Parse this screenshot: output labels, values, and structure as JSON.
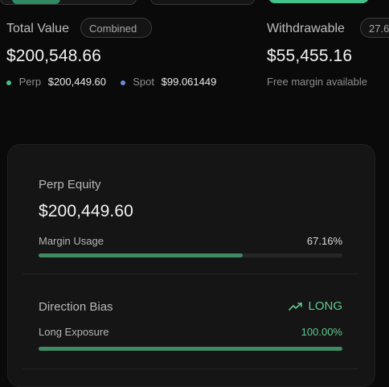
{
  "summary": {
    "total_value_label": "Total Value",
    "combined_pill": "Combined",
    "total_value": "$200,548.66",
    "perp_label": "Perp",
    "perp_value": "$200,449.60",
    "spot_label": "Spot",
    "spot_value": "$99.061449",
    "withdrawable_label": "Withdrawable",
    "withdrawable_pill": "27.6",
    "withdrawable_value": "$55,455.16",
    "withdrawable_note": "Free margin available"
  },
  "card": {
    "perp_equity_label": "Perp Equity",
    "perp_equity_value": "$200,449.60",
    "margin_usage_label": "Margin Usage",
    "margin_usage_value": "67.16%",
    "margin_usage_fraction": 0.6716,
    "direction_bias_label": "Direction Bias",
    "direction_bias_value": "LONG",
    "long_exposure_label": "Long Exposure",
    "long_exposure_value": "100.00%",
    "long_exposure_fraction": 1.0
  },
  "colors": {
    "accent_green": "#5fca91",
    "bar_green": "#3f8a63",
    "perp_dot": "#4bbf83",
    "spot_dot": "#6b8fd6"
  },
  "icons": {
    "direction": "trending-up-icon"
  }
}
